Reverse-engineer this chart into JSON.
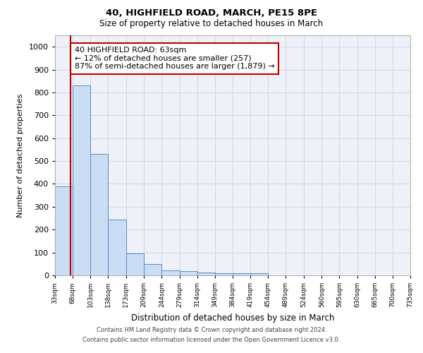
{
  "title1": "40, HIGHFIELD ROAD, MARCH, PE15 8PE",
  "title2": "Size of property relative to detached houses in March",
  "xlabel": "Distribution of detached houses by size in March",
  "ylabel": "Number of detached properties",
  "bin_labels": [
    "33sqm",
    "68sqm",
    "103sqm",
    "138sqm",
    "173sqm",
    "209sqm",
    "244sqm",
    "279sqm",
    "314sqm",
    "349sqm",
    "384sqm",
    "419sqm",
    "454sqm",
    "489sqm",
    "524sqm",
    "560sqm",
    "595sqm",
    "630sqm",
    "665sqm",
    "700sqm",
    "735sqm"
  ],
  "bar_values": [
    390,
    830,
    530,
    245,
    95,
    50,
    22,
    18,
    13,
    10,
    8,
    8,
    0,
    0,
    0,
    0,
    0,
    0,
    0,
    0
  ],
  "bin_edges": [
    33,
    68,
    103,
    138,
    173,
    209,
    244,
    279,
    314,
    349,
    384,
    419,
    454,
    489,
    524,
    560,
    595,
    630,
    665,
    700,
    735
  ],
  "bar_color": "#c9ddf5",
  "bar_edge_color": "#5b8cc8",
  "property_line_x": 63,
  "property_line_color": "#c00000",
  "annotation_text": "40 HIGHFIELD ROAD: 63sqm\n← 12% of detached houses are smaller (257)\n87% of semi-detached houses are larger (1,879) →",
  "annotation_box_color": "#ffffff",
  "annotation_box_edge_color": "#c00000",
  "ylim": [
    0,
    1050
  ],
  "yticks": [
    0,
    100,
    200,
    300,
    400,
    500,
    600,
    700,
    800,
    900,
    1000
  ],
  "grid_color": "#d0d8e8",
  "footer1": "Contains HM Land Registry data © Crown copyright and database right 2024.",
  "footer2": "Contains public sector information licensed under the Open Government Licence v3.0.",
  "bg_color": "#eef2f8"
}
